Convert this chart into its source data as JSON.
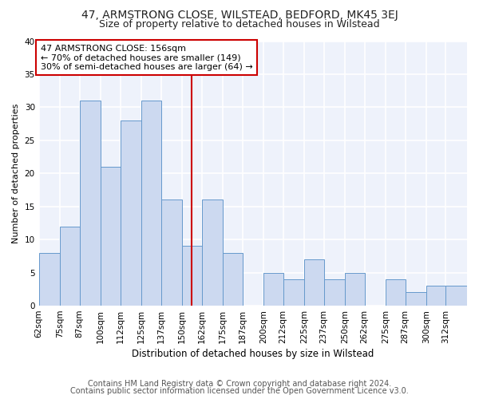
{
  "title": "47, ARMSTRONG CLOSE, WILSTEAD, BEDFORD, MK45 3EJ",
  "subtitle": "Size of property relative to detached houses in Wilstead",
  "xlabel": "Distribution of detached houses by size in Wilstead",
  "ylabel": "Number of detached properties",
  "bin_labels": [
    "62sqm",
    "75sqm",
    "87sqm",
    "100sqm",
    "112sqm",
    "125sqm",
    "137sqm",
    "150sqm",
    "162sqm",
    "175sqm",
    "187sqm",
    "200sqm",
    "212sqm",
    "225sqm",
    "237sqm",
    "250sqm",
    "262sqm",
    "275sqm",
    "287sqm",
    "300sqm",
    "312sqm"
  ],
  "bin_edges": [
    62,
    75,
    87,
    100,
    112,
    125,
    137,
    150,
    162,
    175,
    187,
    200,
    212,
    225,
    237,
    250,
    262,
    275,
    287,
    300,
    312,
    325
  ],
  "values": [
    8,
    12,
    31,
    21,
    28,
    31,
    16,
    9,
    16,
    8,
    0,
    5,
    4,
    7,
    4,
    5,
    0,
    4,
    2,
    3,
    3
  ],
  "bar_color": "#ccd9f0",
  "bar_edge_color": "#6699cc",
  "reference_line_x": 156,
  "reference_line_color": "#cc0000",
  "annotation_text": "47 ARMSTRONG CLOSE: 156sqm\n← 70% of detached houses are smaller (149)\n30% of semi-detached houses are larger (64) →",
  "annotation_box_edge_color": "#cc0000",
  "annotation_box_face_color": "#ffffff",
  "ylim": [
    0,
    40
  ],
  "yticks": [
    0,
    5,
    10,
    15,
    20,
    25,
    30,
    35,
    40
  ],
  "footer_line1": "Contains HM Land Registry data © Crown copyright and database right 2024.",
  "footer_line2": "Contains public sector information licensed under the Open Government Licence v3.0.",
  "bg_color": "#ffffff",
  "plot_bg_color": "#eef2fb",
  "grid_color": "#ffffff",
  "title_fontsize": 10,
  "subtitle_fontsize": 9,
  "xlabel_fontsize": 8.5,
  "ylabel_fontsize": 8,
  "tick_fontsize": 7.5,
  "annotation_fontsize": 8,
  "footer_fontsize": 7
}
